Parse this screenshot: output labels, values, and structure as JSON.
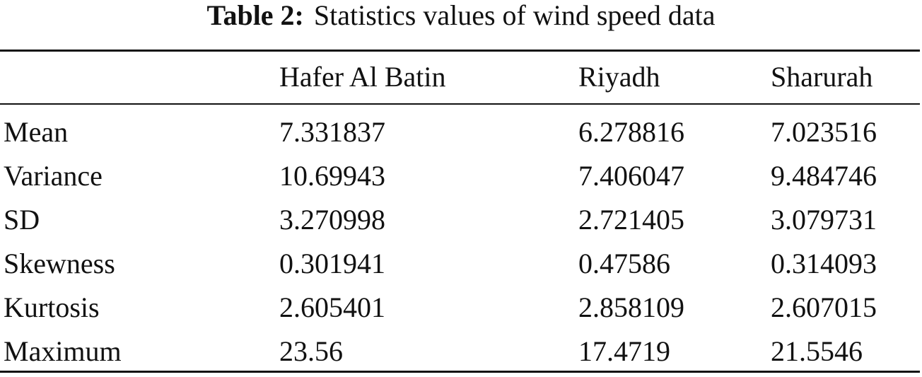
{
  "caption": {
    "label": "Table 2:",
    "text": "Statistics values of wind speed data"
  },
  "table": {
    "columns": [
      "Hafer Al Batin",
      "Riyadh",
      "Sharurah"
    ],
    "rows": [
      {
        "name": "Mean",
        "cells": [
          "7.331837",
          "6.278816",
          "7.023516"
        ]
      },
      {
        "name": "Variance",
        "cells": [
          "10.69943",
          "7.406047",
          "9.484746"
        ]
      },
      {
        "name": "SD",
        "cells": [
          "3.270998",
          "2.721405",
          "3.079731"
        ]
      },
      {
        "name": "Skewness",
        "cells": [
          "0.301941",
          "0.47586",
          "0.314093"
        ]
      },
      {
        "name": "Kurtosis",
        "cells": [
          "2.605401",
          "2.858109",
          "2.607015"
        ]
      },
      {
        "name": "Maximum",
        "cells": [
          "23.56",
          "17.4719",
          "21.5546"
        ]
      }
    ]
  }
}
